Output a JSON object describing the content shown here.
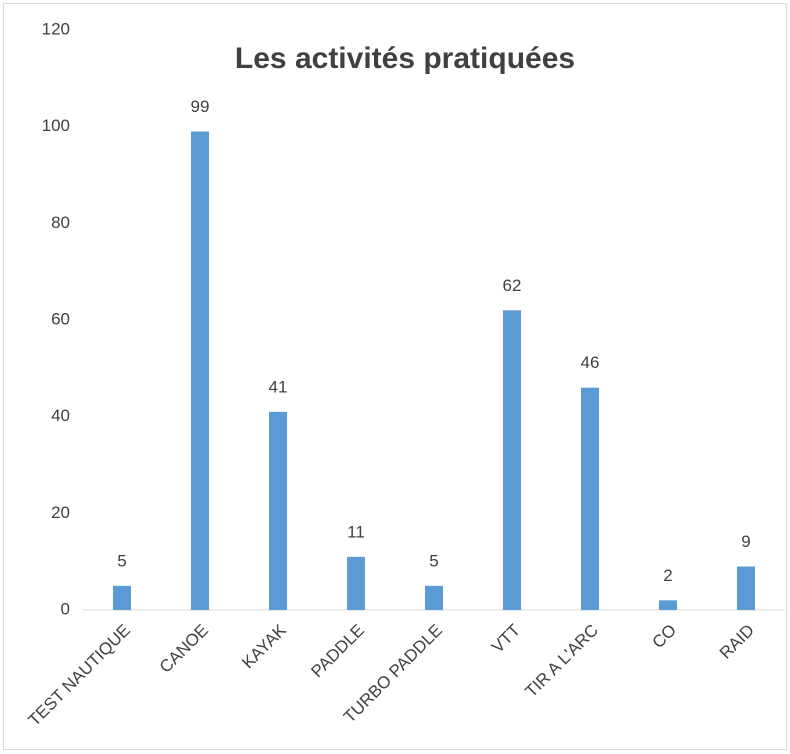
{
  "chart_data": {
    "type": "bar",
    "title": "Les activités pratiquées",
    "categories": [
      "TEST NAUTIQUE",
      "CANOE",
      "KAYAK",
      "PADDLE",
      "TURBO PADDLE",
      "VTT",
      "TIR A L'ARC",
      "CO",
      "RAID"
    ],
    "values": [
      5,
      99,
      41,
      11,
      5,
      62,
      46,
      2,
      9
    ],
    "color": "#5b9bd5",
    "ylim": [
      0,
      120
    ],
    "yticks": [
      0,
      20,
      40,
      60,
      80,
      100,
      120
    ],
    "grid": false,
    "show_value_labels": true
  }
}
